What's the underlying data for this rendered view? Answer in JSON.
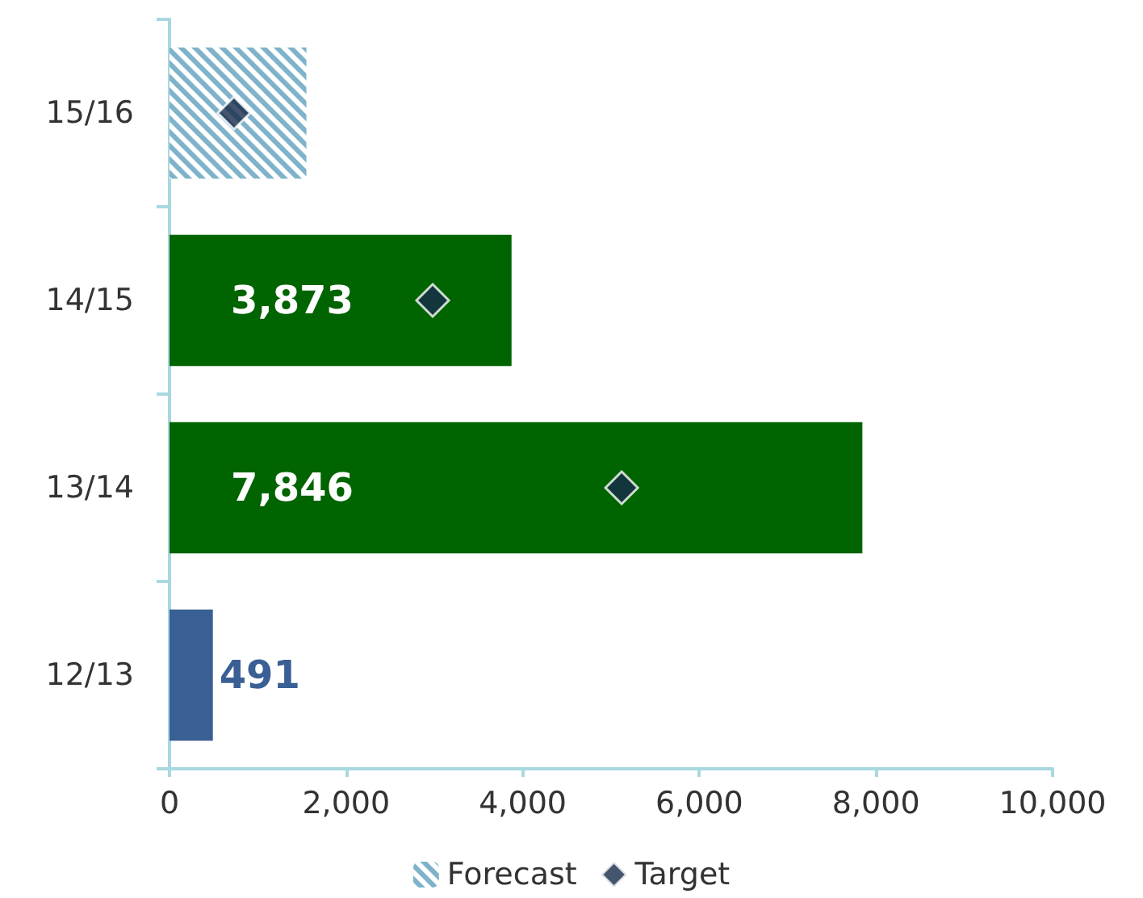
{
  "chart_data": {
    "type": "bar",
    "orientation": "horizontal",
    "categories": [
      "15/16",
      "14/15",
      "13/14",
      "12/13"
    ],
    "series": [
      {
        "colors": [
          null,
          "#006400",
          "#006400",
          "#3a5f94"
        ],
        "values": [
          null,
          3873,
          7846,
          491
        ],
        "value_labels": [
          null,
          "3,873",
          "7,846",
          "491"
        ]
      },
      {
        "name": "Forecast",
        "color": "#7fb3c9",
        "values": [
          1550,
          null,
          null,
          null
        ]
      },
      {
        "type": "scatter",
        "name": "Target",
        "color": "#172a4a",
        "marker": "diamond",
        "values": [
          730,
          2980,
          5120,
          null
        ]
      }
    ],
    "xlim": [
      0,
      10000
    ],
    "xticks": [
      0,
      {
        "value": 2000,
        "label": "2,000"
      },
      {
        "value": 4000,
        "label": "4,000"
      },
      {
        "value": 6000,
        "label": "6,000"
      },
      {
        "value": 8000,
        "label": "8,000"
      },
      {
        "value": 10000,
        "label": "10,000"
      }
    ],
    "grid": false,
    "legend": "bottom"
  }
}
